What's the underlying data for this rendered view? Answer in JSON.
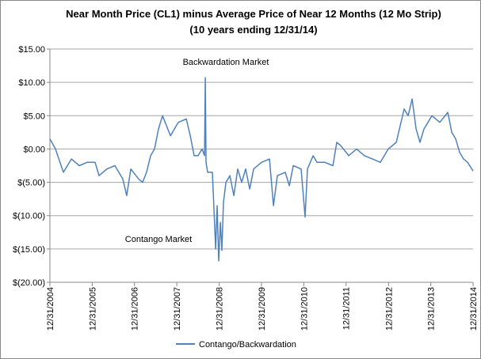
{
  "chart_data": {
    "type": "line",
    "title": "Near Month Price (CL1) minus Average Price of Near 12 Months (12 Mo Strip)",
    "subtitle": "(10 years ending 12/31/14)",
    "annotations": [
      "Backwardation Market",
      "Contango Market"
    ],
    "x": [
      "12/31/2004",
      "02/17/2005",
      "04/26/2005",
      "07/04/2005",
      "09/10/2005",
      "11/17/2005",
      "01/25/2006",
      "02/28/2006",
      "05/07/2006",
      "07/15/2006",
      "09/21/2006",
      "10/25/2006",
      "11/29/2006",
      "02/05/2007",
      "03/11/2007",
      "04/14/2007",
      "05/19/2007",
      "06/22/2007",
      "07/26/2007",
      "08/30/2007",
      "11/06/2007",
      "01/13/2008",
      "03/22/2008",
      "04/25/2008",
      "05/29/2008",
      "07/02/2008",
      "08/05/2008",
      "08/26/2008",
      "09/02/2008",
      "09/08/2008",
      "09/22/2008",
      "11/02/2008",
      "11/16/2008",
      "11/30/2008",
      "12/13/2008",
      "12/27/2008",
      "01/10/2009",
      "01/23/2009",
      "02/06/2009",
      "02/27/2009",
      "04/02/2009",
      "05/06/2009",
      "06/09/2009",
      "07/13/2009",
      "08/16/2009",
      "09/20/2009",
      "10/24/2009",
      "12/31/2009",
      "03/10/2010",
      "04/13/2010",
      "05/17/2010",
      "07/24/2010",
      "08/28/2010",
      "10/01/2010",
      "12/08/2010",
      "01/11/2011",
      "02/01/2011",
      "03/21/2011",
      "04/24/2011",
      "07/01/2011",
      "09/08/2011",
      "10/12/2011",
      "11/15/2011",
      "01/23/2012",
      "03/31/2012",
      "06/07/2012",
      "08/15/2012",
      "10/22/2012",
      "12/29/2012",
      "03/08/2013",
      "05/15/2013",
      "06/19/2013",
      "07/23/2013",
      "08/26/2013",
      "09/29/2013",
      "11/02/2013",
      "12/07/2013",
      "01/10/2014",
      "03/19/2014",
      "05/27/2014",
      "06/30/2014",
      "08/03/2014",
      "09/06/2014",
      "10/10/2014",
      "11/14/2014",
      "12/31/2014"
    ],
    "series": [
      {
        "name": "Contango/Backwardation",
        "color": "#4f81bd",
        "values": [
          1.5,
          0,
          -3.5,
          -1.5,
          -2.5,
          -2,
          -2,
          -4,
          -3,
          -2.5,
          -4.5,
          -7,
          -3,
          -4.5,
          -5,
          -3.5,
          -1,
          0,
          3,
          5,
          2,
          4,
          4.5,
          2,
          -1,
          -1,
          0,
          -1,
          10.7,
          -2,
          -3.5,
          -3.5,
          -9,
          -15,
          -8.5,
          -16.8,
          -11,
          -15.2,
          -8,
          -5,
          -4,
          -7,
          -3,
          -5,
          -3,
          -6,
          -3,
          -2,
          -1.5,
          -8.5,
          -4,
          -3.5,
          -5.5,
          -2.5,
          -3,
          -10.2,
          -3,
          -1,
          -2,
          -2,
          -2.5,
          1,
          0.5,
          -1,
          0,
          -1,
          -1.5,
          -2,
          0,
          1,
          6,
          5,
          7.5,
          3,
          1,
          3,
          4,
          5,
          4,
          5.5,
          2.5,
          1.5,
          -0.5,
          -1.5,
          -2,
          -3.3
        ]
      }
    ],
    "xlim": [
      "12/31/2004",
      "12/31/2014"
    ],
    "xticks": [
      "12/31/2004",
      "12/31/2005",
      "12/31/2006",
      "12/31/2007",
      "12/31/2008",
      "12/31/2009",
      "12/31/2010",
      "12/31/2011",
      "12/31/2012",
      "12/31/2013",
      "12/31/2014"
    ],
    "ylim": [
      -20,
      15
    ],
    "yticks": [
      {
        "value": -20,
        "label": "$(20.00)"
      },
      {
        "value": -15,
        "label": "$(15.00)"
      },
      {
        "value": -10,
        "label": "$(10.00)"
      },
      {
        "value": -5,
        "label": "$(5.00)"
      },
      {
        "value": 0,
        "label": "$0.00"
      },
      {
        "value": 5,
        "label": "$5.00"
      },
      {
        "value": 10,
        "label": "$10.00"
      },
      {
        "value": 15,
        "label": "$15.00"
      }
    ],
    "grid": true,
    "legend": "bottom"
  }
}
